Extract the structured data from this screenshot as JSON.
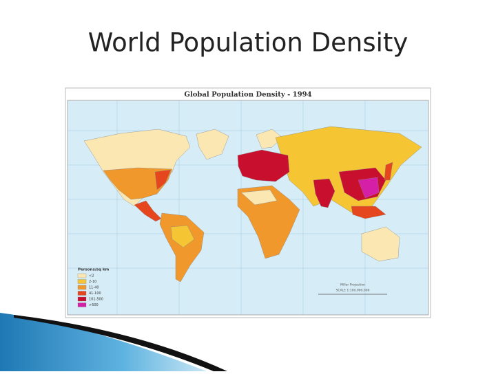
{
  "title": "World Population Density",
  "map": {
    "title": "Global Population Density - 1994",
    "projection": "Miller Projection",
    "scale": "SCALE 1:100,000,000",
    "legend": {
      "title": "Persons/sq km",
      "items": [
        {
          "label": "<2",
          "color": "#fbe7b2"
        },
        {
          "label": "2-10",
          "color": "#f5c533"
        },
        {
          "label": "11-40",
          "color": "#f0982c"
        },
        {
          "label": "41-100",
          "color": "#e6461d"
        },
        {
          "label": "101-500",
          "color": "#c8102e"
        },
        {
          "label": ">500",
          "color": "#d41fa6"
        }
      ]
    }
  }
}
